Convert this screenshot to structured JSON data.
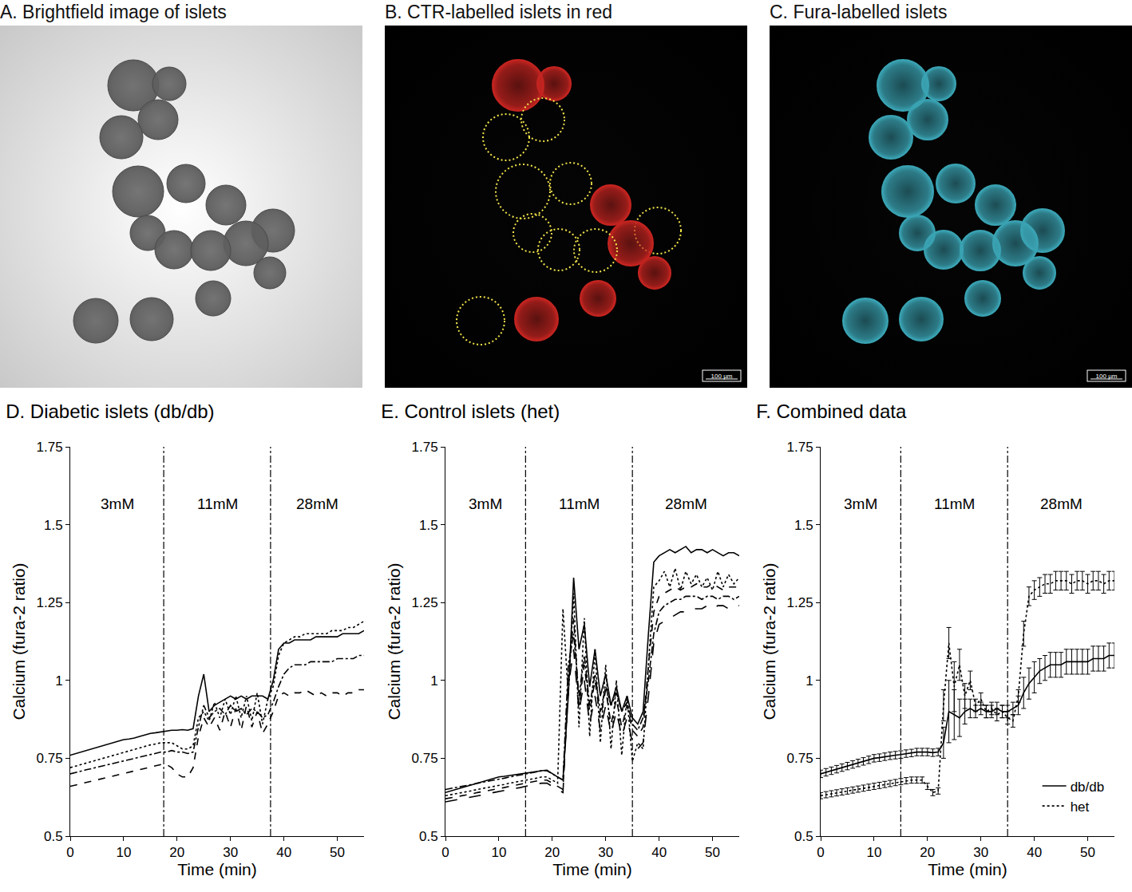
{
  "images": [
    {
      "title": "A. Brightfield image of islets",
      "style": "brightfield",
      "color": "#5f5f5f"
    },
    {
      "title": "B. CTR-labelled islets in red",
      "style": "fluorescence",
      "color": "#c42420",
      "outline_color": "#f2e34a",
      "scale_bar": "100 µm"
    },
    {
      "title": "C. Fura-labelled islets",
      "style": "fluorescence",
      "color": "#3aa3b3",
      "scale_bar": "100 µm"
    }
  ],
  "chart_data": [
    {
      "type": "line",
      "title": "D. Diabetic islets (db/db)",
      "x_label": "Time (min)",
      "y_label": "Calcium (fura-2 ratio)",
      "x": [
        0,
        1,
        2,
        3,
        4,
        5,
        6,
        7,
        8,
        9,
        10,
        11,
        12,
        13,
        14,
        15,
        16,
        17,
        18,
        19,
        20,
        21,
        22,
        23,
        24,
        25,
        26,
        27,
        28,
        29,
        30,
        31,
        32,
        33,
        34,
        35,
        36,
        37,
        38,
        39,
        40,
        41,
        42,
        43,
        44,
        45,
        46,
        47,
        48,
        49,
        50,
        51,
        52,
        53,
        54,
        55
      ],
      "xlim": [
        0,
        55
      ],
      "xticks": [
        0,
        10,
        20,
        30,
        40,
        50
      ],
      "ylim": [
        0.5,
        1.75
      ],
      "yticks": [
        0.5,
        0.75,
        1,
        1.25,
        1.5,
        1.75
      ],
      "grid": false,
      "phases": [
        {
          "label": "3mM",
          "start": 0,
          "end": 17.5
        },
        {
          "label": "11mM",
          "start": 17.5,
          "end": 37.5
        },
        {
          "label": "28mM",
          "start": 37.5,
          "end": 55
        }
      ],
      "series": [
        {
          "color": "#000000",
          "line_style": "solid",
          "values": [
            0.76,
            0.765,
            0.77,
            0.775,
            0.78,
            0.785,
            0.79,
            0.795,
            0.8,
            0.805,
            0.81,
            0.812,
            0.815,
            0.82,
            0.825,
            0.83,
            0.832,
            0.835,
            0.838,
            0.84,
            0.84,
            0.842,
            0.84,
            0.845,
            0.95,
            1.02,
            0.9,
            0.92,
            0.93,
            0.94,
            0.95,
            0.94,
            0.95,
            0.94,
            0.95,
            0.95,
            0.95,
            0.94,
            1.0,
            1.1,
            1.12,
            1.12,
            1.13,
            1.13,
            1.13,
            1.13,
            1.14,
            1.14,
            1.14,
            1.14,
            1.14,
            1.15,
            1.15,
            1.15,
            1.15,
            1.16
          ]
        },
        {
          "color": "#000000",
          "line_style": "dotted",
          "values": [
            0.72,
            0.725,
            0.73,
            0.735,
            0.74,
            0.745,
            0.75,
            0.755,
            0.76,
            0.765,
            0.77,
            0.775,
            0.78,
            0.785,
            0.79,
            0.793,
            0.796,
            0.8,
            0.8,
            0.8,
            0.79,
            0.78,
            0.78,
            0.79,
            0.88,
            0.9,
            0.87,
            0.93,
            0.88,
            0.94,
            0.89,
            0.95,
            0.88,
            0.95,
            0.87,
            0.96,
            0.86,
            0.94,
            0.98,
            1.08,
            1.12,
            1.13,
            1.14,
            1.14,
            1.15,
            1.15,
            1.15,
            1.15,
            1.15,
            1.16,
            1.16,
            1.16,
            1.17,
            1.17,
            1.18,
            1.19
          ]
        },
        {
          "color": "#000000",
          "line_style": "dashdot",
          "values": [
            0.7,
            0.705,
            0.709,
            0.713,
            0.717,
            0.721,
            0.725,
            0.729,
            0.733,
            0.737,
            0.741,
            0.745,
            0.749,
            0.753,
            0.757,
            0.761,
            0.765,
            0.77,
            0.77,
            0.775,
            0.77,
            0.77,
            0.765,
            0.77,
            0.85,
            0.92,
            0.88,
            0.9,
            0.91,
            0.89,
            0.92,
            0.9,
            0.91,
            0.89,
            0.91,
            0.9,
            0.88,
            0.89,
            0.93,
            0.98,
            1.02,
            1.04,
            1.05,
            1.05,
            1.05,
            1.06,
            1.06,
            1.06,
            1.06,
            1.06,
            1.07,
            1.07,
            1.07,
            1.07,
            1.08,
            1.08
          ]
        },
        {
          "color": "#000000",
          "line_style": "dashed",
          "values": [
            0.66,
            0.664,
            0.668,
            0.672,
            0.676,
            0.68,
            0.684,
            0.688,
            0.692,
            0.696,
            0.7,
            0.704,
            0.708,
            0.712,
            0.716,
            0.72,
            0.725,
            0.73,
            0.73,
            0.72,
            0.7,
            0.69,
            0.69,
            0.72,
            0.82,
            0.88,
            0.85,
            0.88,
            0.84,
            0.9,
            0.85,
            0.91,
            0.84,
            0.92,
            0.85,
            0.9,
            0.83,
            0.86,
            0.9,
            0.95,
            0.96,
            0.95,
            0.96,
            0.96,
            0.97,
            0.96,
            0.95,
            0.96,
            0.95,
            0.96,
            0.96,
            0.95,
            0.96,
            0.96,
            0.97,
            0.97
          ]
        }
      ]
    },
    {
      "type": "line",
      "title": "E. Control islets (het)",
      "x_label": "Time (min)",
      "y_label": "Calcium (fura-2 ratio)",
      "x": [
        0,
        1,
        2,
        3,
        4,
        5,
        6,
        7,
        8,
        9,
        10,
        11,
        12,
        13,
        14,
        15,
        16,
        17,
        18,
        19,
        20,
        21,
        22,
        23,
        24,
        25,
        26,
        27,
        28,
        29,
        30,
        31,
        32,
        33,
        34,
        35,
        36,
        37,
        38,
        39,
        40,
        41,
        42,
        43,
        44,
        45,
        46,
        47,
        48,
        49,
        50,
        51,
        52,
        53,
        54,
        55
      ],
      "xlim": [
        0,
        55
      ],
      "xticks": [
        0,
        10,
        20,
        30,
        40,
        50
      ],
      "ylim": [
        0.5,
        1.75
      ],
      "yticks": [
        0.5,
        0.75,
        1,
        1.25,
        1.5,
        1.75
      ],
      "grid": false,
      "phases": [
        {
          "label": "3mM",
          "start": 0,
          "end": 15
        },
        {
          "label": "11mM",
          "start": 15,
          "end": 35
        },
        {
          "label": "28mM",
          "start": 35,
          "end": 55
        }
      ],
      "series": [
        {
          "color": "#000000",
          "line_style": "solid",
          "values": [
            0.64,
            0.645,
            0.65,
            0.655,
            0.66,
            0.665,
            0.67,
            0.675,
            0.68,
            0.685,
            0.69,
            0.692,
            0.695,
            0.698,
            0.7,
            0.702,
            0.705,
            0.708,
            0.71,
            0.712,
            0.7,
            0.69,
            0.68,
            0.95,
            1.33,
            1.1,
            1.18,
            0.98,
            1.1,
            0.95,
            1.02,
            0.92,
            0.98,
            0.9,
            0.95,
            0.88,
            0.86,
            0.9,
            1.15,
            1.38,
            1.4,
            1.41,
            1.42,
            1.41,
            1.42,
            1.43,
            1.41,
            1.42,
            1.42,
            1.41,
            1.42,
            1.41,
            1.4,
            1.41,
            1.41,
            1.4
          ]
        },
        {
          "color": "#000000",
          "line_style": "dotted",
          "values": [
            0.63,
            0.633,
            0.636,
            0.64,
            0.643,
            0.646,
            0.65,
            0.653,
            0.656,
            0.66,
            0.663,
            0.666,
            0.67,
            0.673,
            0.676,
            0.68,
            0.683,
            0.686,
            0.69,
            0.69,
            0.68,
            0.67,
            1.23,
            0.95,
            1.28,
            0.85,
            1.2,
            0.82,
            1.1,
            0.8,
            1.05,
            0.78,
            1.0,
            0.76,
            0.95,
            0.74,
            0.8,
            0.78,
            1.05,
            1.3,
            1.32,
            1.35,
            1.3,
            1.36,
            1.29,
            1.35,
            1.31,
            1.34,
            1.3,
            1.33,
            1.29,
            1.35,
            1.3,
            1.34,
            1.31,
            1.33
          ]
        },
        {
          "color": "#000000",
          "line_style": "dashed",
          "values": [
            0.62,
            0.623,
            0.626,
            0.63,
            0.633,
            0.636,
            0.64,
            0.643,
            0.646,
            0.65,
            0.653,
            0.656,
            0.66,
            0.663,
            0.666,
            0.67,
            0.673,
            0.676,
            0.68,
            0.68,
            0.67,
            0.66,
            0.65,
            1.0,
            1.2,
            0.92,
            1.05,
            0.9,
            1.0,
            0.88,
            0.97,
            0.86,
            0.94,
            0.85,
            0.92,
            0.84,
            0.82,
            0.85,
            1.05,
            1.22,
            1.27,
            1.28,
            1.29,
            1.3,
            1.29,
            1.3,
            1.3,
            1.31,
            1.3,
            1.3,
            1.31,
            1.3,
            1.29,
            1.3,
            1.3,
            1.3
          ]
        },
        {
          "color": "#000000",
          "line_style": "dashdot",
          "values": [
            0.65,
            0.653,
            0.656,
            0.66,
            0.663,
            0.666,
            0.67,
            0.673,
            0.676,
            0.68,
            0.683,
            0.686,
            0.69,
            0.693,
            0.696,
            0.7,
            0.703,
            0.706,
            0.71,
            0.71,
            0.7,
            0.69,
            0.68,
            1.05,
            1.15,
            0.95,
            1.08,
            0.92,
            1.02,
            0.9,
            0.98,
            0.92,
            0.96,
            0.9,
            0.93,
            0.86,
            0.84,
            0.88,
            1.0,
            1.15,
            1.22,
            1.24,
            1.25,
            1.26,
            1.26,
            1.27,
            1.27,
            1.27,
            1.26,
            1.27,
            1.27,
            1.26,
            1.27,
            1.27,
            1.26,
            1.27
          ]
        },
        {
          "color": "#000000",
          "line_style": "longdash",
          "values": [
            0.61,
            0.613,
            0.616,
            0.62,
            0.623,
            0.626,
            0.63,
            0.633,
            0.636,
            0.64,
            0.643,
            0.646,
            0.65,
            0.653,
            0.656,
            0.66,
            0.663,
            0.666,
            0.67,
            0.67,
            0.66,
            0.65,
            0.64,
            0.98,
            1.1,
            0.9,
            1.0,
            0.86,
            0.95,
            0.84,
            0.92,
            0.83,
            0.9,
            0.82,
            0.88,
            0.8,
            0.78,
            0.8,
            0.95,
            1.12,
            1.18,
            1.19,
            1.2,
            1.21,
            1.22,
            1.22,
            1.23,
            1.23,
            1.23,
            1.24,
            1.23,
            1.24,
            1.24,
            1.23,
            1.24,
            1.24
          ]
        }
      ]
    },
    {
      "type": "line",
      "title": "F. Combined data",
      "x_label": "Time (min)",
      "y_label": "Calcium (fura-2 ratio)",
      "x": [
        0,
        1,
        2,
        3,
        4,
        5,
        6,
        7,
        8,
        9,
        10,
        11,
        12,
        13,
        14,
        15,
        16,
        17,
        18,
        19,
        20,
        21,
        22,
        23,
        24,
        25,
        26,
        27,
        28,
        29,
        30,
        31,
        32,
        33,
        34,
        35,
        36,
        37,
        38,
        39,
        40,
        41,
        42,
        43,
        44,
        45,
        46,
        47,
        48,
        49,
        50,
        51,
        52,
        53,
        54,
        55
      ],
      "xlim": [
        0,
        55
      ],
      "xticks": [
        0,
        10,
        20,
        30,
        40,
        50
      ],
      "ylim": [
        0.5,
        1.75
      ],
      "yticks": [
        0.5,
        0.75,
        1,
        1.25,
        1.5,
        1.75
      ],
      "grid": false,
      "legend": "lower right",
      "phases": [
        {
          "label": "3mM",
          "start": 0,
          "end": 15
        },
        {
          "label": "11mM",
          "start": 15,
          "end": 35
        },
        {
          "label": "28mM",
          "start": 35,
          "end": 55
        }
      ],
      "series": [
        {
          "name": "db/db",
          "color": "#000000",
          "line_style": "solid",
          "values": [
            0.7,
            0.705,
            0.71,
            0.715,
            0.72,
            0.725,
            0.73,
            0.735,
            0.74,
            0.745,
            0.75,
            0.752,
            0.755,
            0.758,
            0.76,
            0.762,
            0.765,
            0.767,
            0.77,
            0.77,
            0.77,
            0.768,
            0.77,
            0.8,
            0.9,
            0.89,
            0.88,
            0.9,
            0.91,
            0.9,
            0.91,
            0.9,
            0.9,
            0.91,
            0.9,
            0.9,
            0.91,
            0.92,
            0.96,
            0.99,
            1.01,
            1.03,
            1.04,
            1.05,
            1.05,
            1.05,
            1.06,
            1.06,
            1.06,
            1.06,
            1.06,
            1.07,
            1.07,
            1.07,
            1.08,
            1.08
          ],
          "error": [
            0.012,
            0.012,
            0.012,
            0.012,
            0.012,
            0.012,
            0.012,
            0.012,
            0.012,
            0.012,
            0.012,
            0.012,
            0.012,
            0.012,
            0.012,
            0.012,
            0.012,
            0.012,
            0.012,
            0.012,
            0.012,
            0.012,
            0.012,
            0.05,
            0.1,
            0.08,
            0.06,
            0.04,
            0.03,
            0.02,
            0.02,
            0.02,
            0.02,
            0.02,
            0.02,
            0.02,
            0.02,
            0.03,
            0.05,
            0.05,
            0.05,
            0.04,
            0.04,
            0.04,
            0.04,
            0.04,
            0.04,
            0.04,
            0.04,
            0.04,
            0.04,
            0.04,
            0.04,
            0.04,
            0.04,
            0.04
          ]
        },
        {
          "name": "het",
          "color": "#000000",
          "line_style": "dotted",
          "values": [
            0.63,
            0.633,
            0.636,
            0.639,
            0.642,
            0.645,
            0.648,
            0.651,
            0.654,
            0.657,
            0.66,
            0.663,
            0.666,
            0.669,
            0.672,
            0.675,
            0.678,
            0.68,
            0.68,
            0.68,
            0.66,
            0.64,
            0.645,
            0.92,
            1.12,
            0.98,
            1.05,
            0.95,
            1.0,
            0.92,
            0.94,
            0.9,
            0.91,
            0.89,
            0.9,
            0.88,
            0.87,
            0.95,
            1.15,
            1.27,
            1.29,
            1.3,
            1.31,
            1.31,
            1.32,
            1.32,
            1.32,
            1.31,
            1.32,
            1.32,
            1.31,
            1.32,
            1.32,
            1.31,
            1.32,
            1.32
          ],
          "error": [
            0.01,
            0.01,
            0.01,
            0.01,
            0.01,
            0.01,
            0.01,
            0.01,
            0.01,
            0.01,
            0.01,
            0.01,
            0.01,
            0.01,
            0.01,
            0.01,
            0.01,
            0.01,
            0.01,
            0.01,
            0.01,
            0.01,
            0.01,
            0.05,
            0.05,
            0.08,
            0.05,
            0.04,
            0.03,
            0.02,
            0.02,
            0.02,
            0.02,
            0.02,
            0.02,
            0.02,
            0.02,
            0.02,
            0.04,
            0.03,
            0.03,
            0.03,
            0.03,
            0.03,
            0.03,
            0.03,
            0.03,
            0.03,
            0.03,
            0.03,
            0.03,
            0.03,
            0.03,
            0.03,
            0.03,
            0.03
          ]
        }
      ]
    }
  ]
}
